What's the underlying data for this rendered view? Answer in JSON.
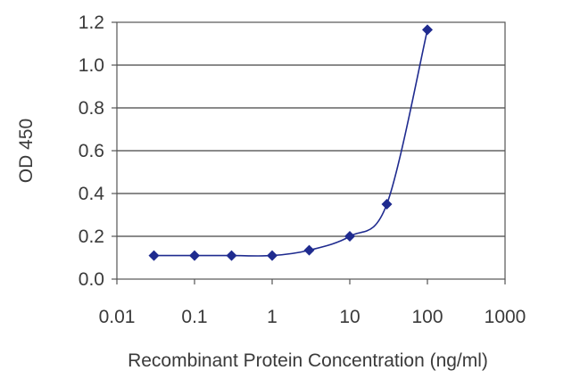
{
  "chart_data": {
    "type": "line",
    "xscale": "log",
    "xlabel": "Recombinant Protein Concentration (ng/ml)",
    "ylabel": "OD 450",
    "xlim": [
      0.01,
      1000
    ],
    "ylim": [
      0,
      1.2
    ],
    "x_ticks": [
      0.01,
      0.1,
      1,
      10,
      100,
      1000
    ],
    "x_tick_labels": [
      "0.01",
      "0.1",
      "1",
      "10",
      "100",
      "1000"
    ],
    "y_ticks": [
      0,
      0.2,
      0.4,
      0.6,
      0.8,
      1.0,
      1.2
    ],
    "y_tick_labels": [
      "0.0",
      "0.2",
      "0.4",
      "0.6",
      "0.8",
      "1.0",
      "1.2"
    ],
    "grid": "horizontal",
    "legend": "none",
    "series": [
      {
        "color": "#1f2b8f",
        "marker": "diamond",
        "x": [
          0.03,
          0.1,
          0.3,
          1,
          3,
          10,
          30,
          100
        ],
        "y": [
          0.11,
          0.11,
          0.11,
          0.11,
          0.135,
          0.2,
          0.35,
          1.165
        ]
      }
    ]
  }
}
